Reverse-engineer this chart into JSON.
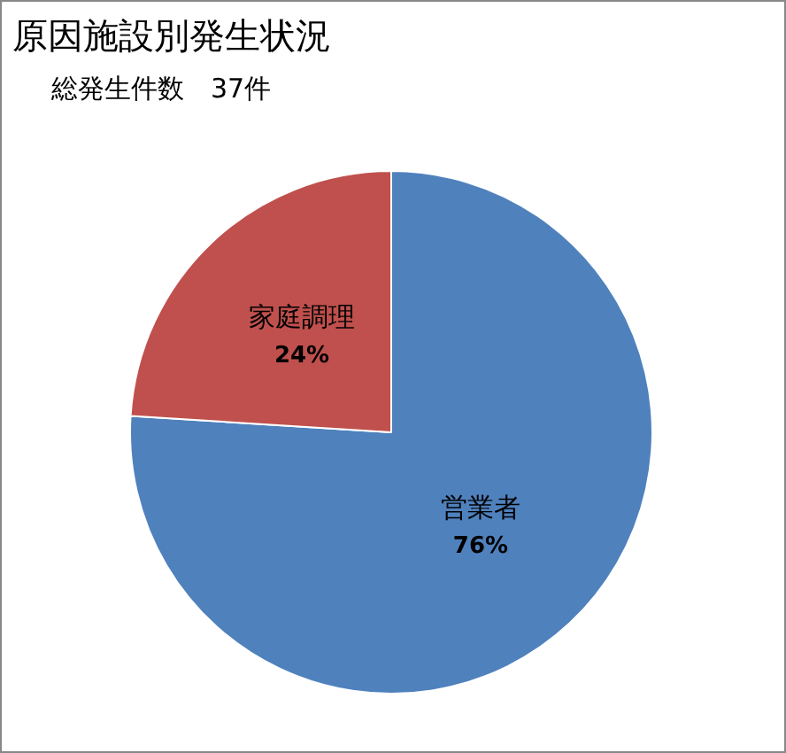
{
  "chart_data": {
    "type": "pie",
    "title": "原因施設別発生状況",
    "subtitle": "総発生件数　37件",
    "categories": [
      "営業者",
      "家庭調理"
    ],
    "values": [
      76,
      24
    ],
    "colors": [
      "#4f81bd",
      "#c0504d"
    ],
    "value_labels": [
      "76%",
      "24%"
    ],
    "legend": false
  }
}
